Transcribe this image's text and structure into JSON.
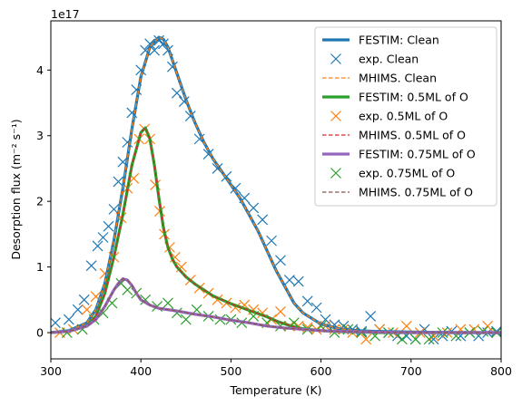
{
  "chart_data": {
    "type": "line",
    "title": "",
    "xlabel": "Temperature (K)",
    "ylabel": "Desorption flux (m⁻² s⁻¹)",
    "offset_text": "1e17",
    "xlim": [
      300,
      800
    ],
    "ylim": [
      -0.4,
      4.75
    ],
    "y_scale": 1e+17,
    "xticks": [
      300,
      400,
      500,
      600,
      700,
      800
    ],
    "yticks": [
      0,
      1,
      2,
      3,
      4
    ],
    "grid": false,
    "legend_position": "top-right",
    "colors": {
      "clean": "#1f77b4",
      "half": "#2ca02c",
      "half_exp": "#ff7f0e",
      "half_mhims": "#d62728",
      "threeq": "#9467bd",
      "threeq_exp": "#2ca02c",
      "threeq_mhims": "#8c564b"
    },
    "series": [
      {
        "name": "FESTIM: Clean",
        "kind": "line",
        "color": "#1f77b4",
        "width": 3.2,
        "x": [
          300,
          320,
          340,
          350,
          360,
          370,
          380,
          390,
          400,
          410,
          420,
          425,
          430,
          440,
          450,
          460,
          470,
          480,
          490,
          500,
          510,
          520,
          530,
          540,
          550,
          560,
          570,
          580,
          600,
          620,
          640,
          660,
          700,
          750,
          800
        ],
        "y": [
          0.0,
          0.03,
          0.15,
          0.35,
          0.75,
          1.4,
          2.2,
          3.1,
          3.9,
          4.35,
          4.5,
          4.47,
          4.35,
          3.95,
          3.55,
          3.2,
          2.9,
          2.65,
          2.45,
          2.25,
          2.05,
          1.8,
          1.55,
          1.25,
          0.95,
          0.7,
          0.45,
          0.3,
          0.13,
          0.06,
          0.03,
          0.02,
          0.01,
          0.0,
          0.0
        ]
      },
      {
        "name": "exp. Clean",
        "kind": "scatter",
        "color": "#1f77b4",
        "x": [
          305,
          320,
          330,
          337,
          345,
          352,
          358,
          364,
          370,
          375,
          380,
          385,
          390,
          395,
          400,
          405,
          410,
          415,
          420,
          425,
          430,
          435,
          440,
          448,
          455,
          465,
          475,
          485,
          495,
          505,
          515,
          525,
          535,
          545,
          555,
          565,
          575,
          585,
          595,
          605,
          615,
          625,
          635,
          645,
          655,
          665,
          675,
          685,
          695,
          705,
          715,
          725,
          735,
          745,
          755,
          765,
          775,
          785,
          795
        ],
        "y": [
          0.15,
          0.2,
          0.35,
          0.5,
          1.02,
          1.32,
          1.45,
          1.62,
          1.88,
          2.3,
          2.6,
          2.9,
          3.35,
          3.7,
          4.0,
          4.3,
          4.4,
          4.3,
          4.45,
          4.4,
          4.3,
          4.05,
          3.65,
          3.52,
          3.3,
          2.95,
          2.72,
          2.5,
          2.38,
          2.2,
          2.05,
          1.9,
          1.72,
          1.4,
          1.1,
          0.8,
          0.78,
          0.48,
          0.38,
          0.2,
          0.12,
          0.1,
          0.05,
          0.02,
          0.25,
          0.05,
          0.0,
          -0.05,
          -0.05,
          -0.1,
          0.05,
          -0.1,
          -0.05,
          0.02,
          -0.05,
          0.0,
          -0.05,
          0.0,
          0.02
        ]
      },
      {
        "name": "MHIMS. Clean",
        "kind": "dashed",
        "color": "#ff7f0e",
        "width": 1.3,
        "x": [
          300,
          320,
          340,
          350,
          360,
          370,
          380,
          390,
          400,
          410,
          420,
          425,
          430,
          440,
          450,
          460,
          470,
          480,
          490,
          500,
          510,
          520,
          530,
          540,
          550,
          560,
          570,
          580,
          600,
          620,
          640,
          660,
          700,
          750,
          800
        ],
        "y": [
          0.0,
          0.03,
          0.15,
          0.35,
          0.75,
          1.4,
          2.2,
          3.1,
          3.9,
          4.35,
          4.5,
          4.47,
          4.35,
          3.95,
          3.55,
          3.2,
          2.9,
          2.65,
          2.45,
          2.25,
          2.05,
          1.8,
          1.55,
          1.25,
          0.95,
          0.7,
          0.45,
          0.3,
          0.13,
          0.06,
          0.03,
          0.02,
          0.01,
          0.0,
          0.0
        ]
      },
      {
        "name": "FESTIM: 0.5ML of O",
        "kind": "line",
        "color": "#2ca02c",
        "width": 3.2,
        "x": [
          300,
          320,
          340,
          350,
          360,
          370,
          380,
          390,
          400,
          405,
          410,
          415,
          420,
          425,
          430,
          435,
          440,
          450,
          460,
          470,
          480,
          490,
          500,
          510,
          520,
          530,
          540,
          550,
          560,
          570,
          580,
          600,
          620,
          640,
          660,
          700,
          750,
          800
        ],
        "y": [
          0.0,
          0.02,
          0.1,
          0.25,
          0.6,
          1.15,
          1.8,
          2.55,
          3.05,
          3.12,
          2.95,
          2.55,
          2.05,
          1.6,
          1.3,
          1.12,
          1.0,
          0.85,
          0.74,
          0.65,
          0.56,
          0.5,
          0.44,
          0.39,
          0.34,
          0.29,
          0.24,
          0.18,
          0.13,
          0.09,
          0.06,
          0.03,
          0.015,
          0.01,
          0.0,
          0.0,
          0.0,
          0.0
        ]
      },
      {
        "name": "exp. 0.5ML of O",
        "kind": "scatter",
        "color": "#ff7f0e",
        "x": [
          310,
          325,
          340,
          350,
          360,
          370,
          378,
          385,
          392,
          398,
          404,
          410,
          416,
          421,
          426,
          432,
          438,
          445,
          455,
          465,
          475,
          485,
          495,
          505,
          515,
          525,
          535,
          545,
          555,
          565,
          575,
          585,
          595,
          605,
          615,
          625,
          635,
          650,
          665,
          680,
          695,
          710,
          725,
          740,
          755,
          770,
          785
        ],
        "y": [
          0.0,
          0.05,
          0.35,
          0.55,
          0.9,
          1.15,
          1.75,
          2.2,
          2.35,
          2.95,
          3.1,
          2.95,
          2.25,
          1.85,
          1.5,
          1.3,
          1.15,
          1.0,
          0.8,
          0.68,
          0.6,
          0.5,
          0.45,
          0.38,
          0.42,
          0.35,
          0.3,
          0.2,
          0.32,
          0.1,
          0.1,
          0.08,
          0.05,
          0.1,
          0.05,
          0.05,
          0.0,
          -0.1,
          0.05,
          0.0,
          0.1,
          0.0,
          -0.05,
          0.0,
          0.05,
          0.05,
          0.1
        ]
      },
      {
        "name": "MHIMS. 0.5ML of O",
        "kind": "dashed",
        "color": "#d62728",
        "width": 1.3,
        "x": [
          300,
          320,
          340,
          350,
          360,
          370,
          380,
          390,
          400,
          405,
          410,
          415,
          420,
          425,
          430,
          435,
          440,
          450,
          460,
          470,
          480,
          490,
          500,
          510,
          520,
          530,
          540,
          550,
          560,
          570,
          580,
          600,
          620,
          640,
          660,
          700,
          750,
          800
        ],
        "y": [
          0.0,
          0.02,
          0.1,
          0.25,
          0.6,
          1.15,
          1.8,
          2.55,
          3.05,
          3.12,
          2.95,
          2.55,
          2.05,
          1.6,
          1.3,
          1.12,
          1.0,
          0.85,
          0.74,
          0.65,
          0.56,
          0.5,
          0.44,
          0.39,
          0.34,
          0.29,
          0.24,
          0.18,
          0.13,
          0.09,
          0.06,
          0.03,
          0.015,
          0.01,
          0.0,
          0.0,
          0.0,
          0.0
        ]
      },
      {
        "name": "FESTIM: 0.75ML of O",
        "kind": "line",
        "color": "#9467bd",
        "width": 3.2,
        "x": [
          300,
          320,
          340,
          350,
          360,
          370,
          375,
          380,
          385,
          390,
          395,
          400,
          410,
          420,
          440,
          460,
          480,
          500,
          520,
          540,
          560,
          580,
          600,
          620,
          650,
          700,
          750,
          800
        ],
        "y": [
          0.0,
          0.02,
          0.1,
          0.2,
          0.4,
          0.65,
          0.75,
          0.82,
          0.8,
          0.72,
          0.6,
          0.5,
          0.42,
          0.37,
          0.33,
          0.28,
          0.24,
          0.19,
          0.15,
          0.1,
          0.07,
          0.05,
          0.03,
          0.02,
          0.01,
          0.0,
          0.0,
          0.0
        ]
      },
      {
        "name": "exp. 0.75ML of O",
        "kind": "scatter",
        "color": "#2ca02c",
        "x": [
          318,
          335,
          348,
          358,
          368,
          378,
          385,
          395,
          405,
          418,
          430,
          440,
          450,
          462,
          475,
          488,
          500,
          512,
          525,
          540,
          555,
          570,
          585,
          600,
          615,
          630,
          645,
          660,
          675,
          690,
          705,
          720,
          735,
          750,
          765,
          780,
          795
        ],
        "y": [
          0.0,
          0.05,
          0.2,
          0.3,
          0.45,
          0.75,
          0.65,
          0.6,
          0.5,
          0.4,
          0.45,
          0.3,
          0.2,
          0.35,
          0.25,
          0.2,
          0.2,
          0.15,
          0.25,
          0.15,
          0.1,
          0.15,
          0.05,
          0.1,
          0.0,
          0.05,
          0.0,
          -0.05,
          0.0,
          -0.1,
          -0.1,
          -0.1,
          0.0,
          -0.05,
          0.0,
          0.02,
          0.0
        ]
      },
      {
        "name": "MHIMS. 0.75ML of O",
        "kind": "dashed",
        "color": "#8c564b",
        "width": 1.3,
        "x": [
          300,
          320,
          340,
          350,
          360,
          370,
          375,
          380,
          385,
          390,
          395,
          400,
          410,
          420,
          440,
          460,
          480,
          500,
          520,
          540,
          560,
          580,
          600,
          620,
          650,
          700,
          750,
          800
        ],
        "y": [
          0.0,
          0.02,
          0.1,
          0.2,
          0.4,
          0.65,
          0.75,
          0.82,
          0.8,
          0.72,
          0.6,
          0.5,
          0.42,
          0.37,
          0.33,
          0.28,
          0.24,
          0.19,
          0.15,
          0.1,
          0.07,
          0.05,
          0.03,
          0.02,
          0.01,
          0.0,
          0.0,
          0.0
        ]
      }
    ]
  }
}
